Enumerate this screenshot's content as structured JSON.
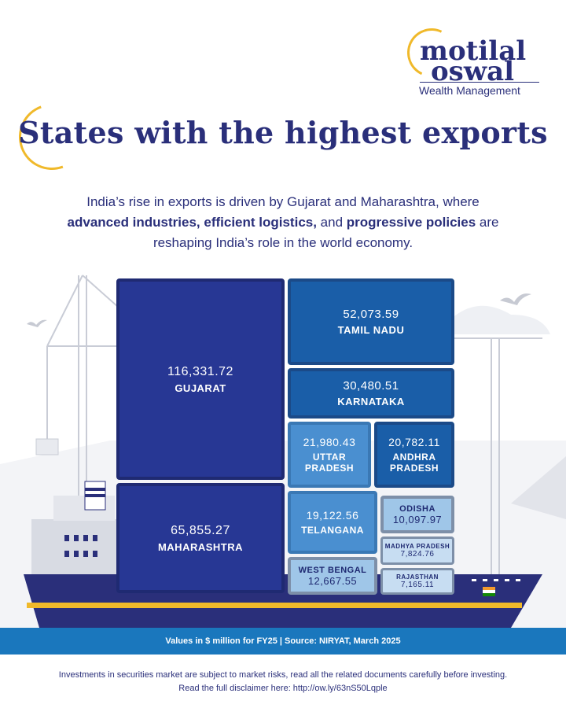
{
  "logo": {
    "line1": "motilal",
    "line2": "oswal",
    "sub": "Wealth Management"
  },
  "title": "States with the highest exports",
  "intro": {
    "p1": "India’s rise in exports is driven by Gujarat and Maharashtra, where",
    "b1": "advanced industries, efficient logistics,",
    "p2": " and ",
    "b2": "progressive policies",
    "p3": " are",
    "p4": "reshaping India’s role in the world economy."
  },
  "colors": {
    "navy": "#2a2f7a",
    "container_dark": "#273794",
    "container_mid": "#1a5ea8",
    "container_light": "#9fc6e8",
    "band": "#1a77bd",
    "accent": "#f0b92a"
  },
  "chart_data": {
    "type": "treemap",
    "units": "$ million",
    "items": [
      {
        "name": "GUJARAT",
        "value": 116331.72,
        "value_label": "116,331.72"
      },
      {
        "name": "MAHARASHTRA",
        "value": 65855.27,
        "value_label": "65,855.27"
      },
      {
        "name": "TAMIL NADU",
        "value": 52073.59,
        "value_label": "52,073.59"
      },
      {
        "name": "KARNATAKA",
        "value": 30480.51,
        "value_label": "30,480.51"
      },
      {
        "name": "UTTAR PRADESH",
        "value": 21980.43,
        "value_label": "21,980.43"
      },
      {
        "name": "ANDHRA PRADESH",
        "value": 20782.11,
        "value_label": "20,782.11"
      },
      {
        "name": "TELANGANA",
        "value": 19122.56,
        "value_label": "19,122.56"
      },
      {
        "name": "WEST BENGAL",
        "value": 12667.55,
        "value_label": "12,667.55"
      },
      {
        "name": "ODISHA",
        "value": 10097.97,
        "value_label": "10,097.97"
      },
      {
        "name": "MADHYA PRADESH",
        "value": 7824.76,
        "value_label": "7,824.76"
      },
      {
        "name": "RAJASTHAN",
        "value": 7165.11,
        "value_label": "7,165.11"
      }
    ]
  },
  "footer": {
    "note": "Values in $ million for FY25  |  Source: NIRYAT, March 2025",
    "disclaimer1": "Investments in securities market are subject to market risks, read all the related documents carefully before investing.",
    "disclaimer2": "Read the full disclaimer here: http://ow.ly/63nS50Lqple"
  }
}
